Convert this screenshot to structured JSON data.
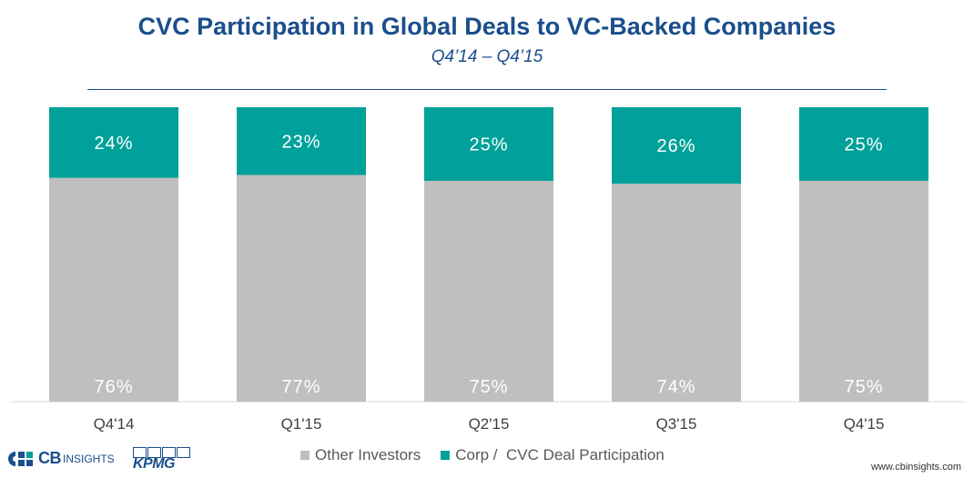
{
  "header": {
    "title": "CVC Participation in Global Deals to VC-Backed Companies",
    "subtitle": "Q4’14 – Q4’15"
  },
  "chart_data": {
    "type": "bar",
    "stacked": true,
    "categories": [
      "Q4'14",
      "Q1'15",
      "Q2'15",
      "Q3'15",
      "Q4'15"
    ],
    "series": [
      {
        "name": "Other Investors",
        "values": [
          76,
          77,
          75,
          74,
          75
        ],
        "labels": [
          "76%",
          "77%",
          "75%",
          "74%",
          "75%"
        ],
        "color": "#bfbfbf"
      },
      {
        "name": "Corp / CVC Deal Participation",
        "values": [
          24,
          23,
          25,
          26,
          25
        ],
        "labels": [
          "24%",
          "23%",
          "25%",
          "26%",
          "25%"
        ],
        "color": "#00a19a"
      }
    ],
    "ylim": [
      0,
      100
    ],
    "title": "CVC Participation in Global Deals to VC-Backed Companies",
    "xlabel": "",
    "ylabel": ""
  },
  "legend": {
    "other_label": "Other Investors",
    "corp_label": "Corp /  CVC Deal Participation"
  },
  "footer": {
    "cb_logo_main": "CB",
    "cb_logo_sub": "INSIGHTS",
    "kpmg_logo": "KPMG",
    "website": "www.cbinsights.com"
  },
  "colors": {
    "brand_blue": "#1a4e8c",
    "teal": "#00a19a",
    "gray": "#bfbfbf"
  }
}
